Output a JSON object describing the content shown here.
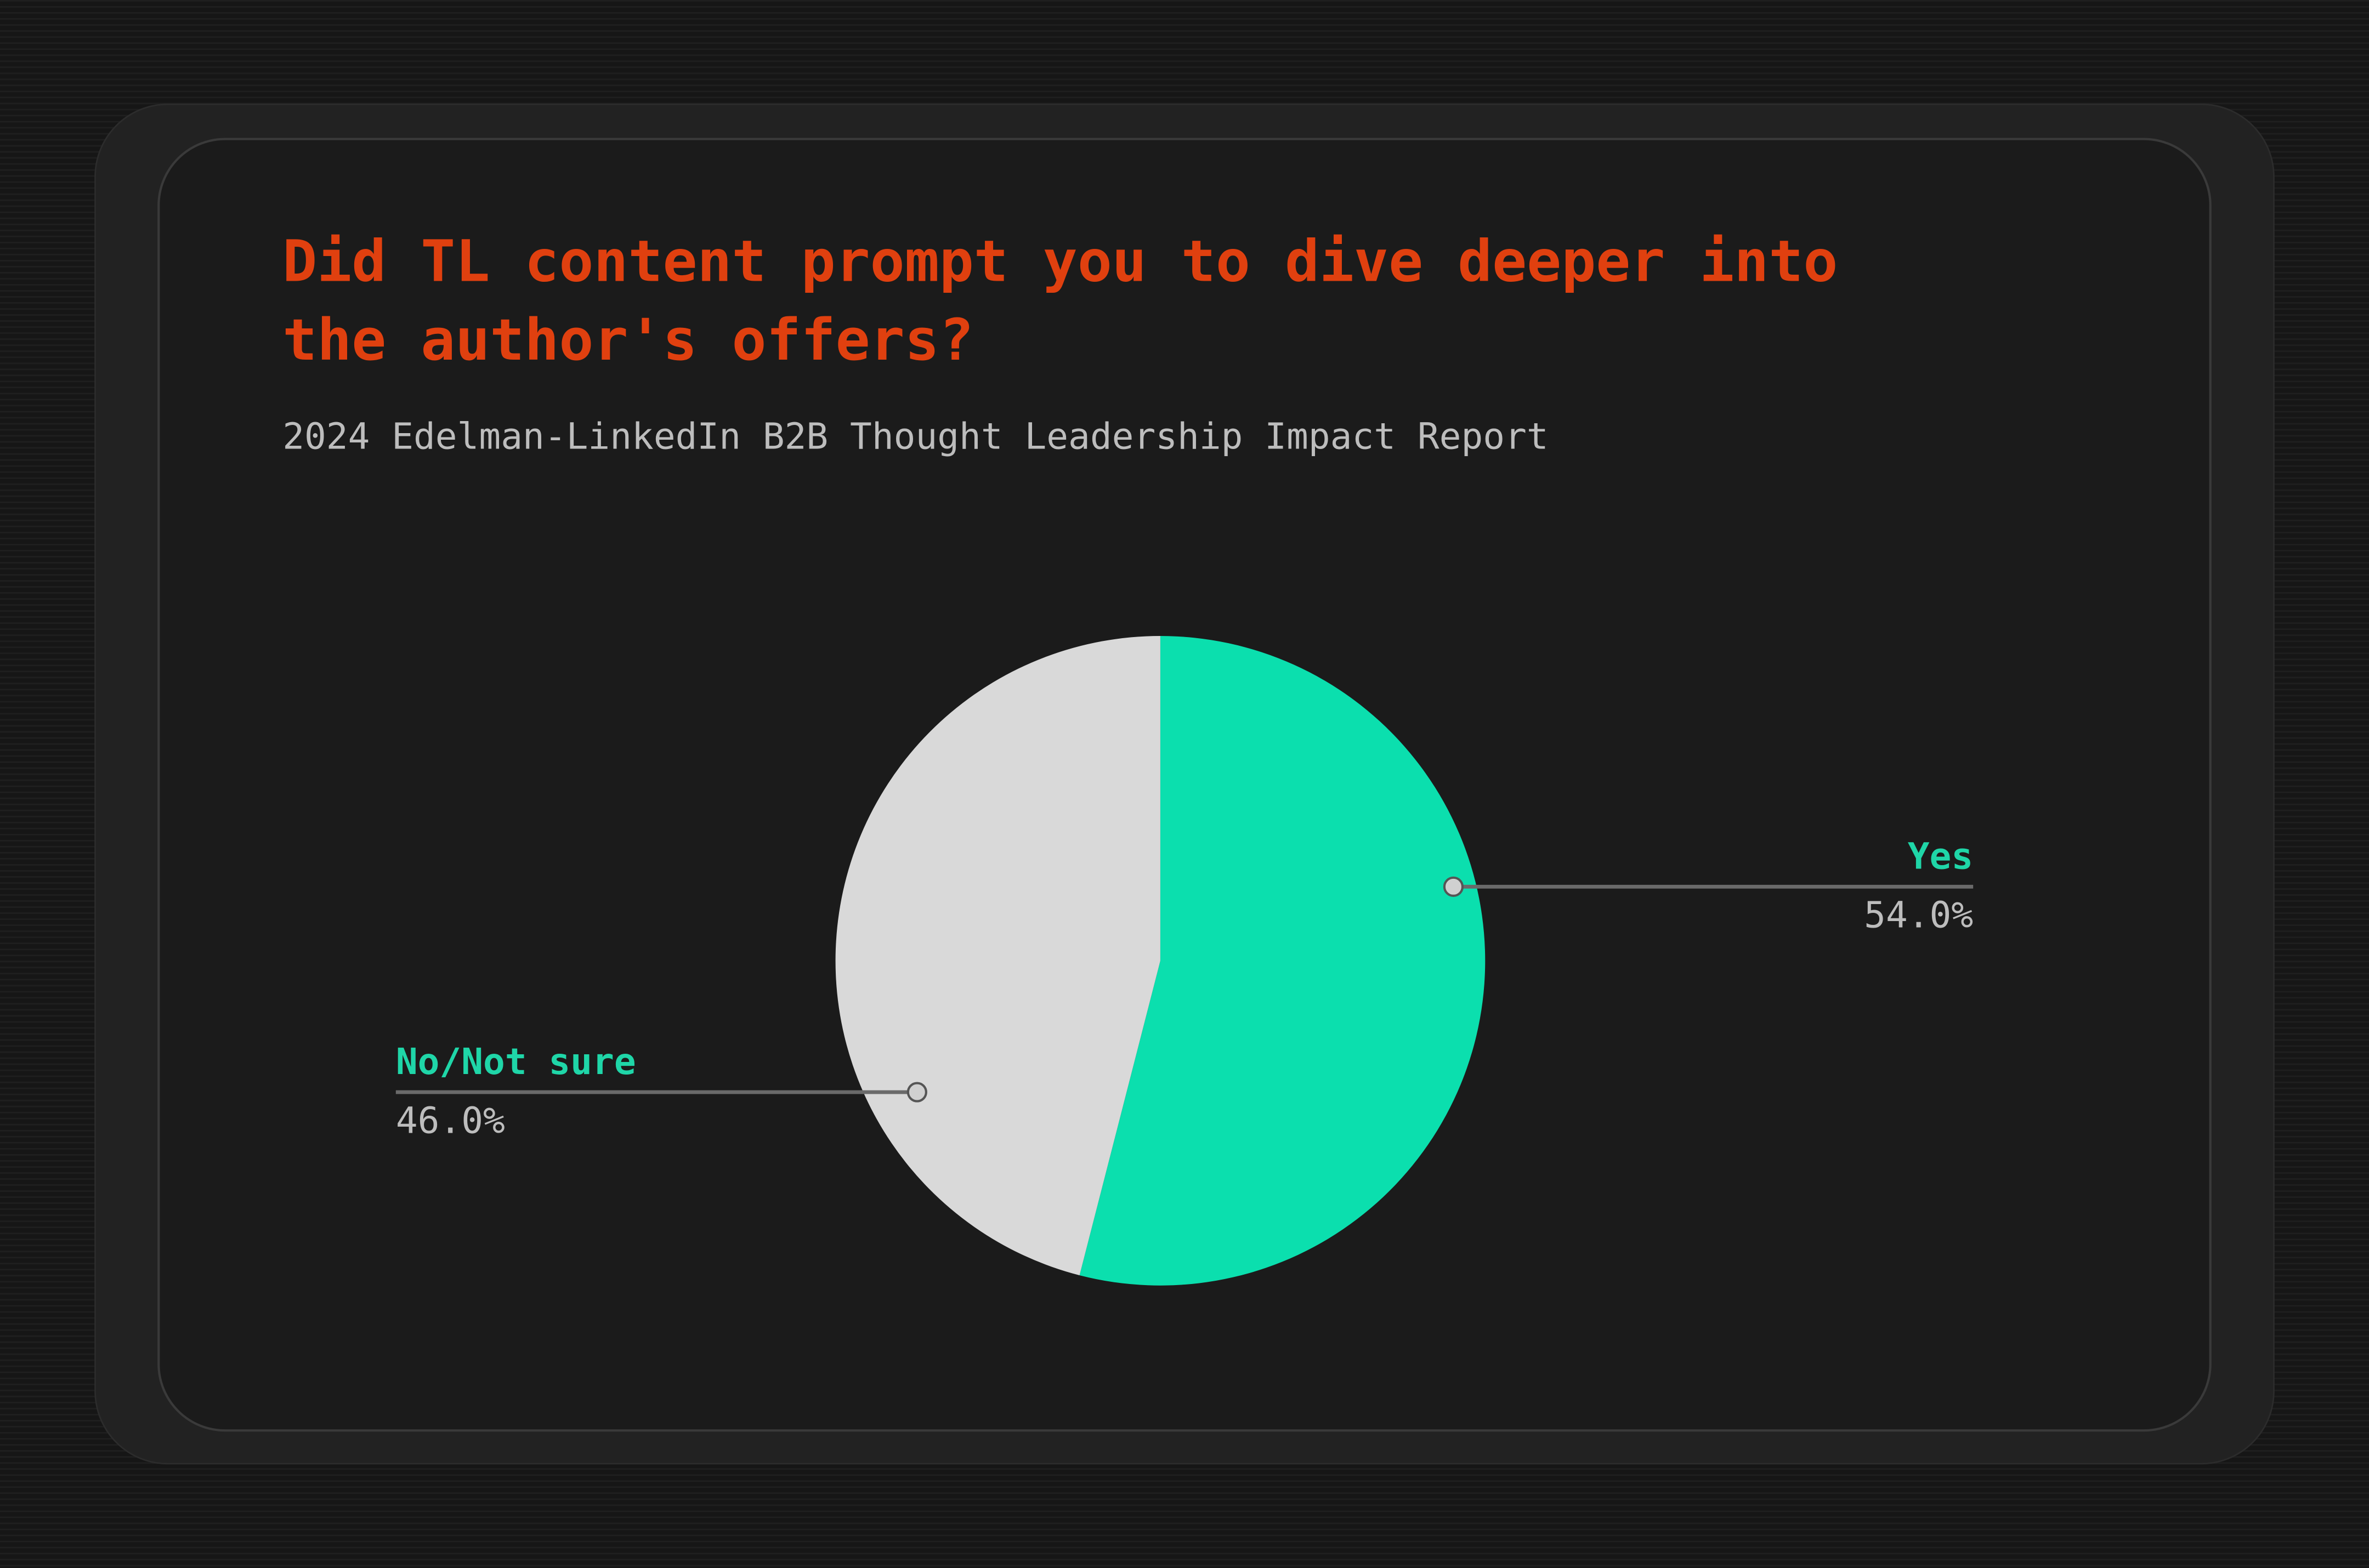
{
  "chart_data": {
    "type": "pie",
    "title": "Did TL content prompt you to dive deeper into the author's offers?",
    "subtitle": "2024 Edelman-LinkedIn B2B Thought Leadership Impact Report",
    "categories": [
      "Yes",
      "No/Not sure"
    ],
    "values": [
      54,
      46
    ],
    "value_labels": [
      "54.0%",
      "46.0%"
    ],
    "colors": [
      "#0bdfae",
      "#d9d9d9"
    ],
    "label_color": "#1fd6a8"
  }
}
